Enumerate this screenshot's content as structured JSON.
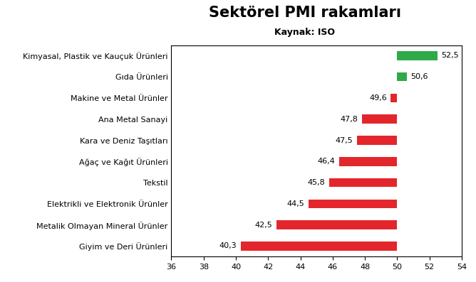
{
  "chart_data": {
    "type": "bar",
    "orientation": "horizontal",
    "title": "Sektörel PMI rakamları",
    "subtitle": "Kaynak: ISO",
    "categories": [
      "Kimyasal, Plastik ve Kauçuk Ürünleri",
      "Gıda Ürünleri",
      "Makine ve Metal Ürünler",
      "Ana Metal Sanayi",
      "Kara ve Deniz Taşıtları",
      "Ağaç ve Kağıt Ürünleri",
      "Tekstil",
      "Elektrikli ve Elektronik Ürünler",
      "Metalik Olmayan Mineral Ürünler",
      "Giyim ve Deri Ürünleri"
    ],
    "values": [
      52.5,
      50.6,
      49.6,
      47.8,
      47.5,
      46.4,
      45.8,
      44.5,
      42.5,
      40.3
    ],
    "value_labels": [
      "52,5",
      "50,6",
      "49,6",
      "47,8",
      "47,5",
      "46,4",
      "45,8",
      "44,5",
      "42,5",
      "40,3"
    ],
    "base": 50,
    "colors": [
      "#2eaa4a",
      "#2eaa4a",
      "#e3262b",
      "#e3262b",
      "#e3262b",
      "#e3262b",
      "#e3262b",
      "#e3262b",
      "#e3262b",
      "#e3262b"
    ],
    "xlim": [
      36,
      54
    ],
    "xticks": [
      36,
      38,
      40,
      42,
      44,
      46,
      48,
      50,
      52,
      54
    ],
    "grid": false,
    "data_labels": true
  }
}
